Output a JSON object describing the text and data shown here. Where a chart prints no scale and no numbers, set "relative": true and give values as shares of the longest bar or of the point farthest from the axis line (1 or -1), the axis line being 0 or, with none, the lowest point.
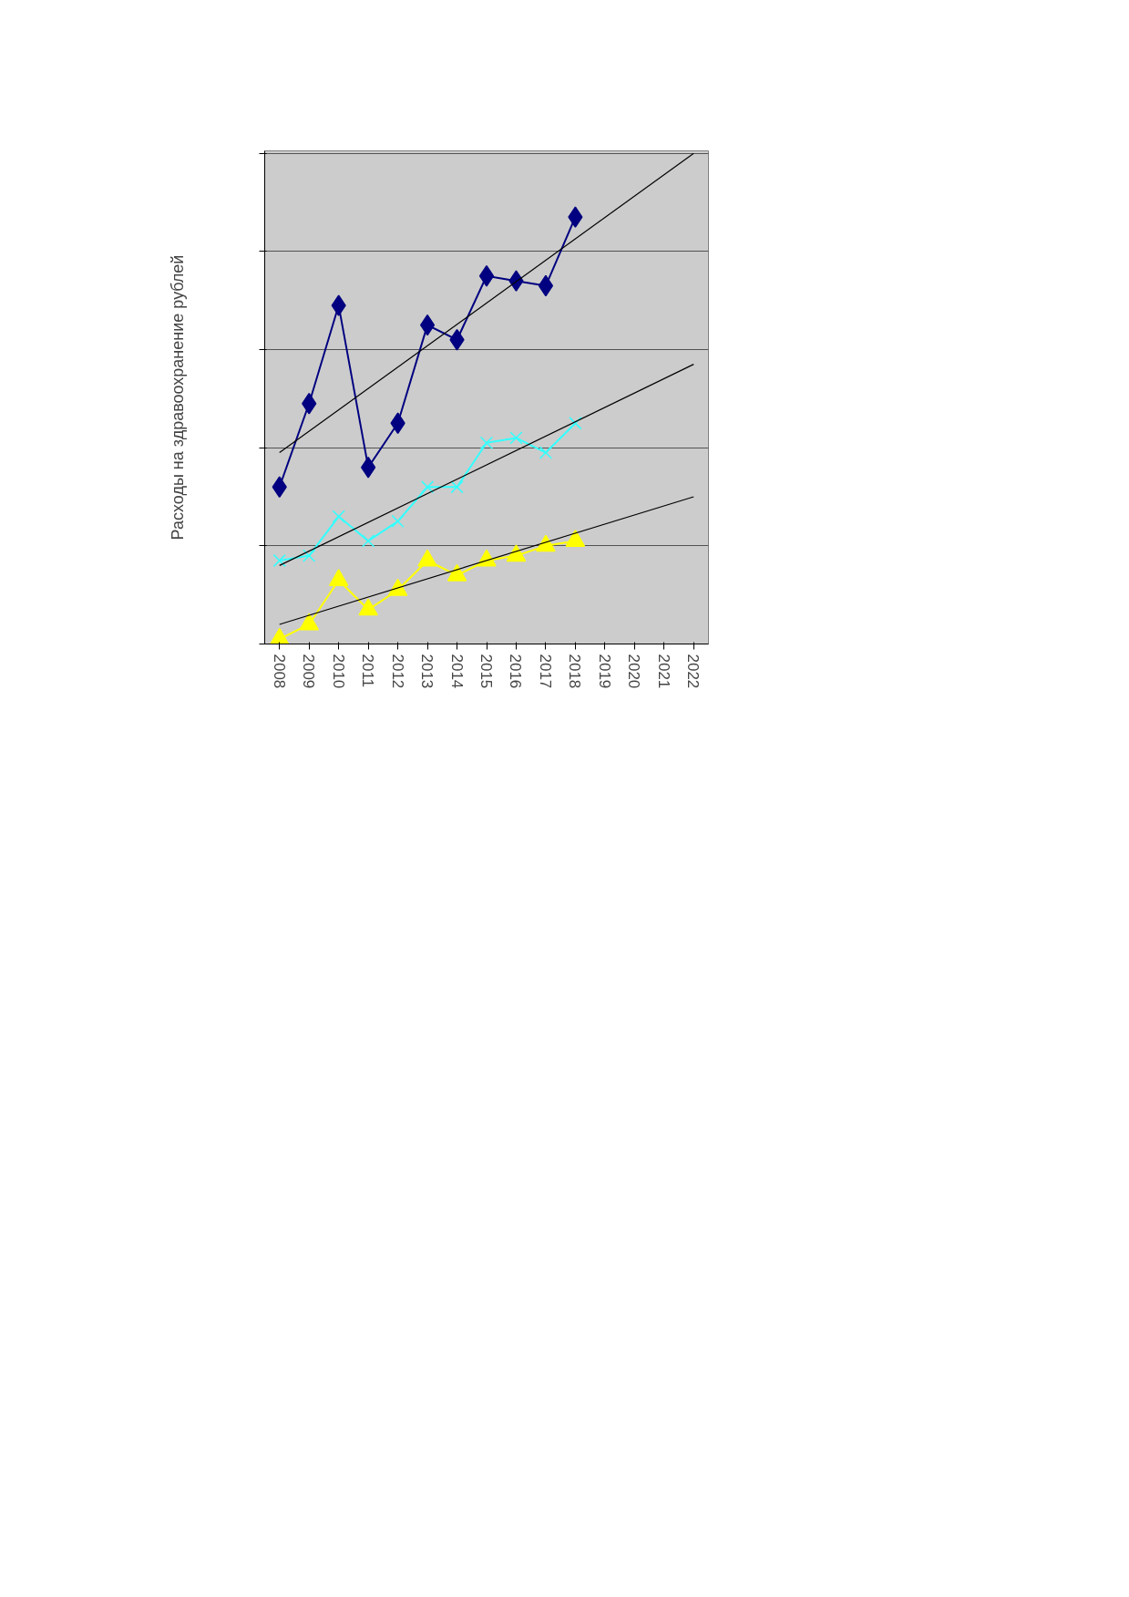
{
  "chart_data": {
    "type": "line",
    "relative": true,
    "ylabel": "Расходы на здравоохранение рублей",
    "categories": [
      "2008",
      "2009",
      "2010",
      "2011",
      "2012",
      "2013",
      "2014",
      "2015",
      "2016",
      "2017",
      "2018",
      "2019",
      "2020",
      "2021",
      "2022"
    ],
    "series": [
      {
        "color": "#ffff00",
        "marker": "triangle",
        "values": [
          0.01,
          0.04,
          0.13,
          0.07,
          0.11,
          0.17,
          0.14,
          0.17,
          0.18,
          0.2,
          0.21,
          null,
          null,
          null,
          null
        ]
      },
      {
        "color": "#33ffff",
        "marker": "cross",
        "values": [
          0.17,
          0.18,
          0.26,
          0.21,
          0.25,
          0.32,
          0.32,
          0.41,
          0.42,
          0.39,
          0.45,
          null,
          null,
          null,
          null
        ]
      },
      {
        "color": "#000080",
        "marker": "diamond",
        "values": [
          0.32,
          0.49,
          0.69,
          0.36,
          0.45,
          0.65,
          0.62,
          0.75,
          0.74,
          0.73,
          0.87,
          null,
          null,
          null,
          null
        ]
      },
      {
        "type": "line",
        "color": "#000000",
        "marker": "none",
        "values": [
          0.04,
          null,
          null,
          null,
          null,
          null,
          null,
          null,
          null,
          null,
          null,
          null,
          null,
          null,
          0.3
        ]
      },
      {
        "type": "line",
        "color": "#000000",
        "marker": "none",
        "values": [
          0.16,
          null,
          null,
          null,
          null,
          null,
          null,
          null,
          null,
          null,
          null,
          null,
          null,
          null,
          0.57
        ]
      },
      {
        "type": "line",
        "color": "#000000",
        "marker": "none",
        "values": [
          0.39,
          null,
          null,
          null,
          null,
          null,
          null,
          null,
          null,
          null,
          null,
          null,
          null,
          null,
          1.0
        ]
      }
    ],
    "grid": "y",
    "line_style": "solid"
  }
}
